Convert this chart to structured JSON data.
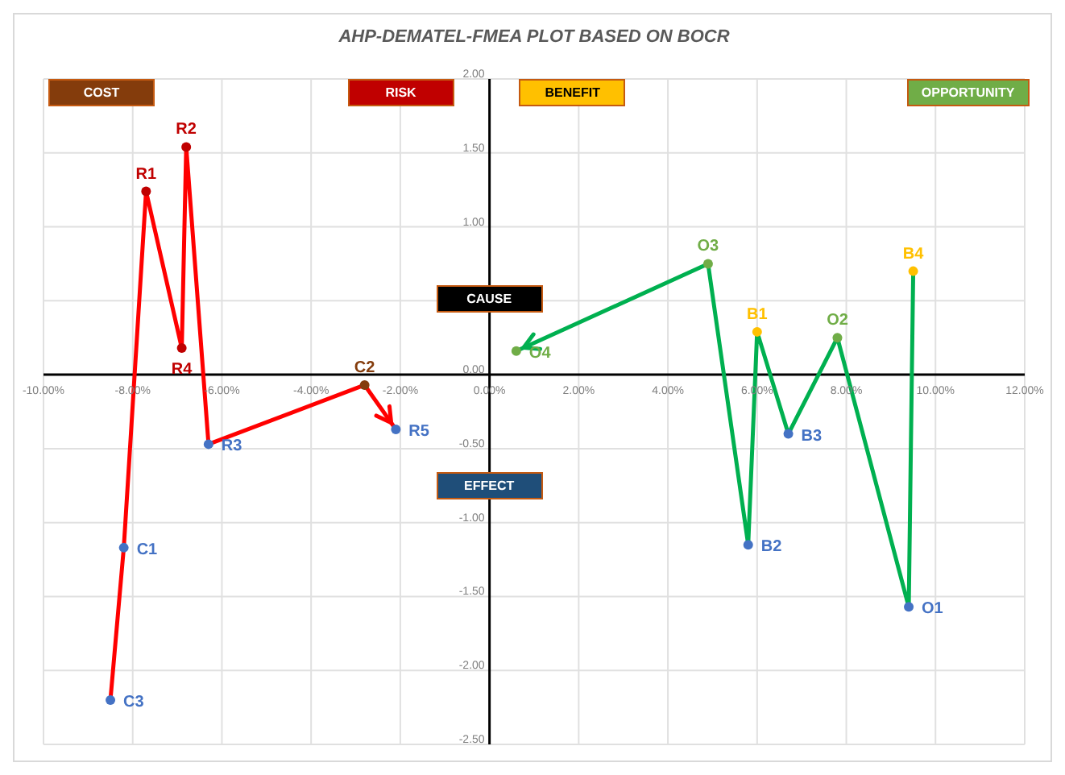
{
  "chart_data": {
    "type": "line",
    "title": "AHP-DEMATEL-FMEA PLOT BASED ON BOCR",
    "series": [
      {
        "color": "#ff0000",
        "x": [
          -8.5,
          -8.2,
          -7.7,
          -6.9,
          -6.8,
          -6.3,
          -2.8,
          -2.1
        ],
        "values": [
          -2.2,
          -1.17,
          1.24,
          0.18,
          1.54,
          -0.47,
          -0.07,
          -0.37
        ],
        "colors": [
          "#4472c4",
          "#4472c4",
          "#c00000",
          "#c00000",
          "#c00000",
          "#4472c4",
          "#843c0c",
          "#4472c4"
        ]
      },
      {
        "color": "#00b050",
        "x": [
          9.5,
          9.4,
          7.8,
          6.7,
          6.0,
          5.8,
          4.9,
          0.6
        ],
        "values": [
          0.7,
          -1.57,
          0.25,
          -0.4,
          0.29,
          -1.15,
          0.75,
          0.16
        ],
        "colors": [
          "#ffc000",
          "#4472c4",
          "#70ad47",
          "#4472c4",
          "#ffc000",
          "#4472c4",
          "#70ad47",
          "#70ad47"
        ]
      }
    ],
    "xlim": [
      -10,
      12
    ],
    "ylim": [
      -2.5,
      2
    ],
    "xticks": [
      {
        "value": -10,
        "label": "-10.00%"
      },
      {
        "value": -8,
        "label": "-8.00%"
      },
      {
        "value": -6,
        "label": "-6.00%"
      },
      {
        "value": -4,
        "label": "-4.00%"
      },
      {
        "value": -2,
        "label": "-2.00%"
      },
      {
        "value": 0,
        "label": "0.00%"
      },
      {
        "value": 2,
        "label": "2.00%"
      },
      {
        "value": 4,
        "label": "4.00%"
      },
      {
        "value": 6,
        "label": "6.00%"
      },
      {
        "value": 8,
        "label": "8.00%"
      },
      {
        "value": 10,
        "label": "10.00%"
      },
      {
        "value": 12,
        "label": "12.00%"
      }
    ],
    "yticks": [
      {
        "value": -2.5,
        "label": "-2.50"
      },
      {
        "value": -2,
        "label": "-2.00"
      },
      {
        "value": -1.5,
        "label": "-1.50"
      },
      {
        "value": -1,
        "label": "-1.00"
      },
      {
        "value": -0.5,
        "label": "-0.50"
      },
      {
        "value": 0,
        "label": "0.00"
      },
      {
        "value": 0.5,
        "label": null
      },
      {
        "value": 1,
        "label": "1.00"
      },
      {
        "value": 1.5,
        "label": "1.50"
      },
      {
        "value": 2,
        "label": "2.00"
      }
    ],
    "grid": true,
    "marker": "circle",
    "line_style": "solid",
    "annotations": [
      "COST",
      "RISK",
      "BENEFIT",
      "OPPORTUNITY",
      "CAUSE",
      "EFFECT",
      {
        "text": "C3",
        "x": -8.5,
        "y": -2.2
      },
      {
        "text": "C1",
        "x": -8.2,
        "y": -1.17
      },
      {
        "text": "R1",
        "x": -7.7,
        "y": 1.24
      },
      {
        "text": "R4",
        "x": -6.9,
        "y": 0.18
      },
      {
        "text": "R2",
        "x": -6.8,
        "y": 1.54
      },
      {
        "text": "R3",
        "x": -6.3,
        "y": -0.47
      },
      {
        "text": "C2",
        "x": -2.8,
        "y": -0.07
      },
      {
        "text": "R5",
        "x": -2.1,
        "y": -0.37
      },
      {
        "text": "B4",
        "x": 9.5,
        "y": 0.7
      },
      {
        "text": "O1",
        "x": 9.4,
        "y": -1.57
      },
      {
        "text": "O2",
        "x": 7.8,
        "y": 0.25
      },
      {
        "text": "B3",
        "x": 6.7,
        "y": -0.4
      },
      {
        "text": "B1",
        "x": 6.0,
        "y": 0.29
      },
      {
        "text": "B2",
        "x": 5.8,
        "y": -1.15
      },
      {
        "text": "O3",
        "x": 4.9,
        "y": 0.75
      },
      {
        "text": "O4",
        "x": 0.6,
        "y": 0.16
      }
    ]
  }
}
